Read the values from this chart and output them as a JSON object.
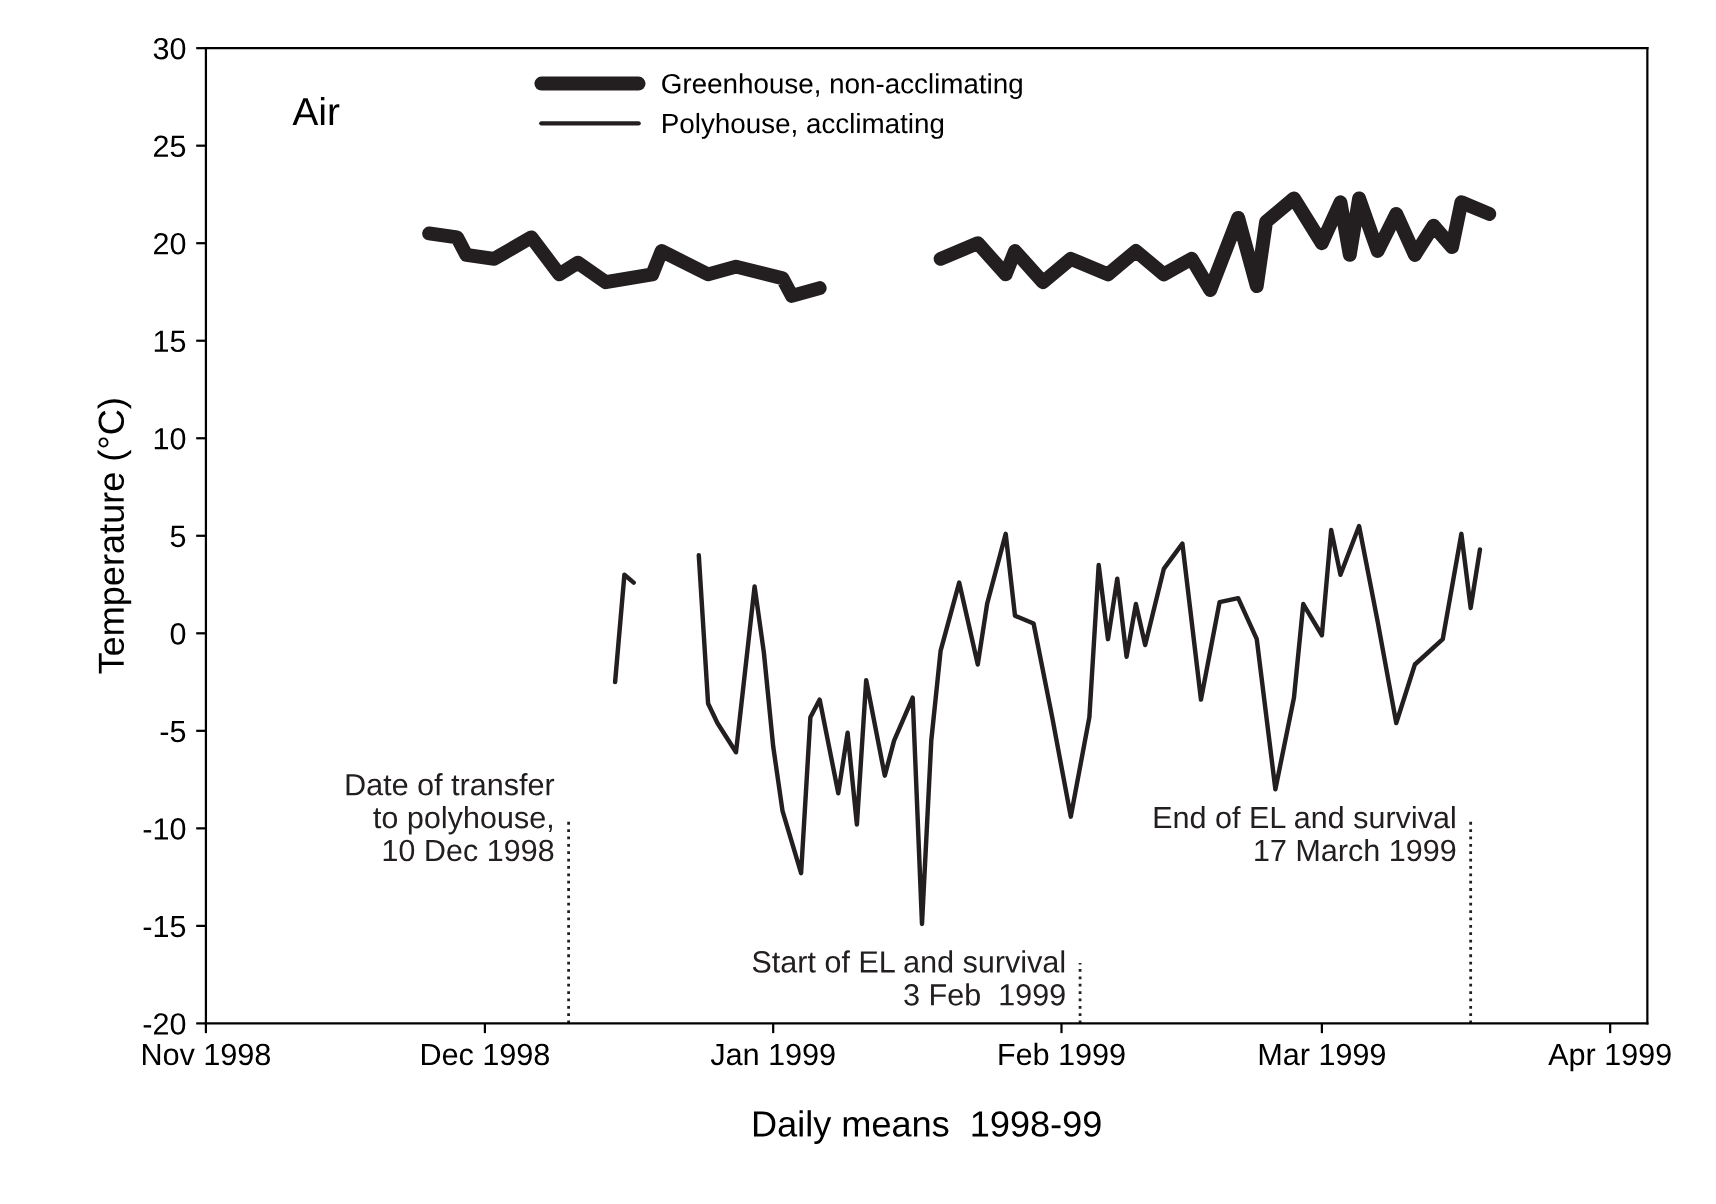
{
  "chart_data": {
    "type": "line",
    "xlabel": "Daily means  1998-99",
    "ylabel": "Temperature (°C)",
    "series": [
      {
        "name": "Greenhouse, non-acclimating",
        "color": "#231f20",
        "x": [
          "1998-11-25",
          "1998-11-28",
          "1998-11-29",
          "1998-12-02",
          "1998-12-06",
          "1998-12-09",
          "1998-12-11",
          "1998-12-14",
          "1998-12-19",
          "1998-12-20",
          "1998-12-25",
          "1998-12-28",
          "1999-01-02",
          "1999-01-03",
          "1999-01-06",
          "1999-01-12",
          "1999-01-19",
          "1999-01-23",
          "1999-01-26",
          "1999-01-27",
          "1999-01-30",
          "1999-02-02",
          "1999-02-06",
          "1999-02-09",
          "1999-02-12",
          "1999-02-15",
          "1999-02-17",
          "1999-02-20",
          "1999-02-22",
          "1999-02-23",
          "1999-02-26",
          "1999-03-01",
          "1999-03-03",
          "1999-03-04",
          "1999-03-05",
          "1999-03-07",
          "1999-03-09",
          "1999-03-11",
          "1999-03-13",
          "1999-03-15",
          "1999-03-16",
          "1999-03-19"
        ],
        "values": [
          20.5,
          20.3,
          19.4,
          19.2,
          20.3,
          18.4,
          19.0,
          18.0,
          18.4,
          19.6,
          18.4,
          18.8,
          18.2,
          17.3,
          17.7,
          null,
          19.2,
          20.0,
          18.4,
          19.6,
          18.0,
          19.2,
          18.4,
          19.6,
          18.4,
          19.2,
          17.6,
          21.3,
          17.8,
          21.1,
          22.3,
          20.0,
          22.1,
          19.4,
          22.3,
          19.6,
          21.5,
          19.4,
          20.9,
          19.8,
          22.1,
          21.5
        ]
      },
      {
        "name": "Polyhouse, acclimating",
        "color": "#231f20",
        "x": [
          "1998-12-15",
          "1998-12-16",
          "1998-12-17",
          "1998-12-20",
          "1998-12-24",
          "1998-12-25",
          "1998-12-26",
          "1998-12-28",
          "1998-12-30",
          "1998-12-31",
          "1999-01-01",
          "1999-01-02",
          "1999-01-04",
          "1999-01-05",
          "1999-01-06",
          "1999-01-08",
          "1999-01-09",
          "1999-01-10",
          "1999-01-11",
          "1999-01-13",
          "1999-01-14",
          "1999-01-16",
          "1999-01-17",
          "1999-01-18",
          "1999-01-19",
          "1999-01-21",
          "1999-01-23",
          "1999-01-24",
          "1999-01-26",
          "1999-01-27",
          "1999-01-29",
          "1999-01-31",
          "1999-02-02",
          "1999-02-04",
          "1999-02-05",
          "1999-02-06",
          "1999-02-07",
          "1999-02-08",
          "1999-02-09",
          "1999-02-10",
          "1999-02-12",
          "1999-02-14",
          "1999-02-16",
          "1999-02-18",
          "1999-02-20",
          "1999-02-22",
          "1999-02-24",
          "1999-02-26",
          "1999-02-27",
          "1999-03-01",
          "1999-03-02",
          "1999-03-03",
          "1999-03-05",
          "1999-03-07",
          "1999-03-09",
          "1999-03-11",
          "1999-03-14",
          "1999-03-16",
          "1999-03-17",
          "1999-03-18"
        ],
        "values": [
          -2.5,
          3.0,
          2.6,
          null,
          4.0,
          -3.6,
          -4.6,
          -6.1,
          2.4,
          -1.0,
          -5.8,
          -9.1,
          -12.3,
          -4.3,
          -3.4,
          -8.2,
          -5.1,
          -9.8,
          -2.4,
          -7.3,
          -5.5,
          -3.3,
          -14.9,
          -5.5,
          -0.9,
          2.6,
          -1.6,
          1.5,
          5.1,
          0.9,
          0.5,
          -4.3,
          -9.4,
          -4.3,
          3.5,
          -0.3,
          2.8,
          -1.2,
          1.5,
          -0.6,
          3.3,
          4.6,
          -3.4,
          1.6,
          1.8,
          -0.3,
          -8.0,
          -3.3,
          1.5,
          -0.1,
          5.3,
          3.0,
          5.5,
          0.6,
          -4.6,
          -1.6,
          -0.3,
          5.1,
          1.3,
          4.3
        ]
      }
    ],
    "xlim": [
      "1998-11-01",
      "1999-04-05"
    ],
    "xticks": [
      {
        "value": "1998-11-01",
        "label": "Nov 1998"
      },
      {
        "value": "1998-12-01",
        "label": "Dec 1998"
      },
      {
        "value": "1999-01-01",
        "label": "Jan 1999"
      },
      {
        "value": "1999-02-01",
        "label": "Feb 1999"
      },
      {
        "value": "1999-03-01",
        "label": "Mar 1999"
      },
      {
        "value": "1999-04-01",
        "label": "Apr 1999"
      }
    ],
    "ylim": [
      -20,
      30
    ],
    "yticks": [
      -20,
      -15,
      -10,
      -5,
      0,
      5,
      10,
      15,
      20,
      25,
      30
    ],
    "annotations": [
      "Air"
    ],
    "ref_lines": [
      {
        "axis": "x",
        "value": "1998-12-10",
        "label": "Date of transfer\nto polyhouse,\n10 Dec 1998",
        "line_style": "dotted"
      },
      {
        "axis": "x",
        "value": "1999-02-03",
        "label": "Start of EL and survival\n3 Feb  1999",
        "line_style": "dotted"
      },
      {
        "axis": "x",
        "value": "1999-03-17",
        "label": "End of EL and survival\n17 March 1999",
        "line_style": "dotted"
      }
    ],
    "legend": "top",
    "grid": false,
    "marker": "none",
    "line_style": "solid"
  }
}
